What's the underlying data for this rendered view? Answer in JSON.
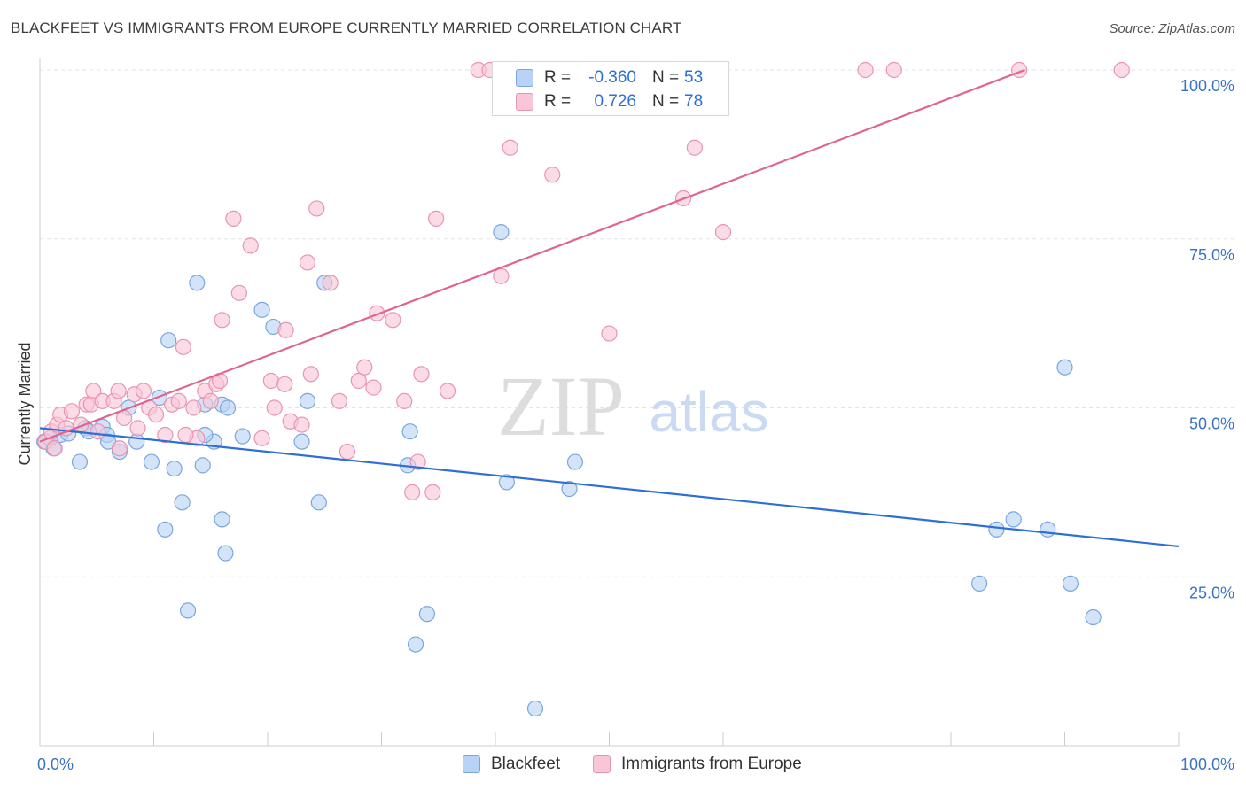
{
  "header": {
    "title": "BLACKFEET VS IMMIGRANTS FROM EUROPE CURRENTLY MARRIED CORRELATION CHART",
    "source": "Source: ZipAtlas.com"
  },
  "watermark": {
    "zip": "ZIP",
    "atlas": "atlas"
  },
  "stats": {
    "blackfeet": {
      "r_label": "R =",
      "r_value": "-0.360",
      "n_label": "N =",
      "n_value": "53"
    },
    "europe": {
      "r_label": "R =",
      "r_value": "0.726",
      "n_label": "N =",
      "n_value": "78"
    }
  },
  "legend": {
    "blackfeet": "Blackfeet",
    "europe": "Immigrants from Europe"
  },
  "colors": {
    "blackfeet_fill": "#b8d3f5",
    "blackfeet_stroke": "#7aa6e0",
    "blackfeet_line": "#2e6fd6",
    "europe_fill": "#f8c6d6",
    "europe_stroke": "#e994b0",
    "europe_line": "#e0658e",
    "grid": "#e3e3e3",
    "tick_label": "#3a72c8"
  },
  "chart_data": {
    "type": "scatter",
    "title": "BLACKFEET VS IMMIGRANTS FROM EUROPE CURRENTLY MARRIED CORRELATION CHART",
    "xlabel": "",
    "ylabel": "Currently Married",
    "xlim": [
      0,
      100
    ],
    "ylim": [
      0,
      100
    ],
    "x_tick_labels": [
      "0.0%",
      "100.0%"
    ],
    "y_ticks": [
      25,
      50,
      75,
      100
    ],
    "y_tick_labels": [
      "25.0%",
      "50.0%",
      "75.0%",
      "100.0%"
    ],
    "grid": true,
    "legend_position": "bottom",
    "series": [
      {
        "name": "Blackfeet",
        "trend": [
          [
            0,
            47.0
          ],
          [
            100,
            29.5
          ]
        ],
        "points": [
          [
            0.4,
            45.0
          ],
          [
            1.2,
            44.0
          ],
          [
            1.8,
            46.0
          ],
          [
            3.5,
            42.0
          ],
          [
            4.0,
            47.0
          ],
          [
            4.3,
            46.5
          ],
          [
            5.5,
            47.2
          ],
          [
            5.9,
            46.0
          ],
          [
            6.0,
            45.0
          ],
          [
            7.0,
            43.5
          ],
          [
            7.8,
            50.0
          ],
          [
            8.5,
            45.0
          ],
          [
            10.5,
            51.5
          ],
          [
            9.8,
            42.0
          ],
          [
            11.3,
            60.0
          ],
          [
            11.8,
            41.0
          ],
          [
            12.5,
            36.0
          ],
          [
            11.0,
            32.0
          ],
          [
            13.0,
            20.0
          ],
          [
            14.5,
            50.5
          ],
          [
            15.3,
            45.0
          ],
          [
            16.0,
            50.5
          ],
          [
            16.5,
            50.0
          ],
          [
            13.8,
            68.5
          ],
          [
            14.3,
            41.5
          ],
          [
            14.5,
            46.0
          ],
          [
            16.0,
            33.5
          ],
          [
            16.3,
            28.5
          ],
          [
            17.8,
            45.8
          ],
          [
            19.5,
            64.5
          ],
          [
            20.5,
            62.0
          ],
          [
            23.0,
            45.0
          ],
          [
            23.5,
            51.0
          ],
          [
            24.5,
            36.0
          ],
          [
            25.0,
            68.5
          ],
          [
            32.5,
            46.5
          ],
          [
            32.3,
            41.5
          ],
          [
            34.0,
            19.5
          ],
          [
            33.0,
            15.0
          ],
          [
            40.5,
            76.0
          ],
          [
            41.0,
            39.0
          ],
          [
            43.5,
            5.5
          ],
          [
            46.5,
            38.0
          ],
          [
            47.0,
            42.0
          ],
          [
            82.5,
            24.0
          ],
          [
            84.0,
            32.0
          ],
          [
            85.5,
            33.5
          ],
          [
            88.5,
            32.0
          ],
          [
            90.0,
            56.0
          ],
          [
            90.5,
            24.0
          ],
          [
            92.5,
            19.0
          ],
          [
            0.9,
            45.5
          ],
          [
            2.5,
            46.2
          ]
        ]
      },
      {
        "name": "Immigrants from Europe",
        "trend": [
          [
            0,
            45.0
          ],
          [
            86.5,
            100.0
          ]
        ],
        "points": [
          [
            0.5,
            45.0
          ],
          [
            1.0,
            46.5
          ],
          [
            1.5,
            47.5
          ],
          [
            1.8,
            49.0
          ],
          [
            2.3,
            47.0
          ],
          [
            2.8,
            49.5
          ],
          [
            3.6,
            47.5
          ],
          [
            4.1,
            50.5
          ],
          [
            4.5,
            50.5
          ],
          [
            4.7,
            52.5
          ],
          [
            5.1,
            46.5
          ],
          [
            5.5,
            51.0
          ],
          [
            6.5,
            51.0
          ],
          [
            6.9,
            52.5
          ],
          [
            7.4,
            48.5
          ],
          [
            8.3,
            52.0
          ],
          [
            8.6,
            47.0
          ],
          [
            9.1,
            52.5
          ],
          [
            9.6,
            50.0
          ],
          [
            10.2,
            49.0
          ],
          [
            11.0,
            46.0
          ],
          [
            11.6,
            50.5
          ],
          [
            12.2,
            51.0
          ],
          [
            12.6,
            59.0
          ],
          [
            13.5,
            50.0
          ],
          [
            13.8,
            45.5
          ],
          [
            14.5,
            52.5
          ],
          [
            15.0,
            51.0
          ],
          [
            15.5,
            53.5
          ],
          [
            15.8,
            54.0
          ],
          [
            16.0,
            63.0
          ],
          [
            17.5,
            67.0
          ],
          [
            17.0,
            78.0
          ],
          [
            18.5,
            74.0
          ],
          [
            19.5,
            45.5
          ],
          [
            20.3,
            54.0
          ],
          [
            20.6,
            50.0
          ],
          [
            21.5,
            53.5
          ],
          [
            21.6,
            61.5
          ],
          [
            22.0,
            48.0
          ],
          [
            23.0,
            47.5
          ],
          [
            23.5,
            71.5
          ],
          [
            23.8,
            55.0
          ],
          [
            24.3,
            79.5
          ],
          [
            25.5,
            68.5
          ],
          [
            26.3,
            51.0
          ],
          [
            27.0,
            43.5
          ],
          [
            28.0,
            54.0
          ],
          [
            28.5,
            56.0
          ],
          [
            29.3,
            53.0
          ],
          [
            29.6,
            64.0
          ],
          [
            31.0,
            63.0
          ],
          [
            32.0,
            51.0
          ],
          [
            32.7,
            37.5
          ],
          [
            33.2,
            42.0
          ],
          [
            33.5,
            55.0
          ],
          [
            34.5,
            37.5
          ],
          [
            34.8,
            78.0
          ],
          [
            35.8,
            52.5
          ],
          [
            38.5,
            100.0
          ],
          [
            39.5,
            100.0
          ],
          [
            40.5,
            69.5
          ],
          [
            41.3,
            88.5
          ],
          [
            45.0,
            84.5
          ],
          [
            47.5,
            100.0
          ],
          [
            48.5,
            100.0
          ],
          [
            49.0,
            100.0
          ],
          [
            50.0,
            61.0
          ],
          [
            56.5,
            81.0
          ],
          [
            57.5,
            88.5
          ],
          [
            60.0,
            76.0
          ],
          [
            72.5,
            100.0
          ],
          [
            75.0,
            100.0
          ],
          [
            86.0,
            100.0
          ],
          [
            95.0,
            100.0
          ],
          [
            1.3,
            44.0
          ],
          [
            7.0,
            44.0
          ],
          [
            12.8,
            46.0
          ]
        ]
      }
    ]
  }
}
